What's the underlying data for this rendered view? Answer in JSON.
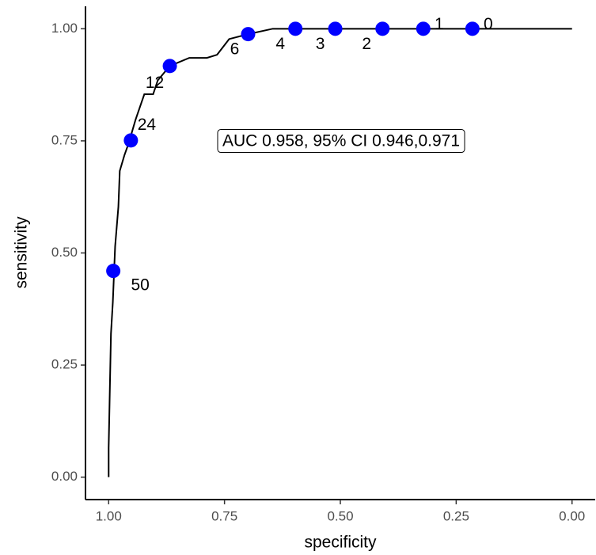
{
  "chart_data": {
    "type": "line",
    "xlabel": "specificity",
    "ylabel": "sensitivity",
    "xlim": [
      1.05,
      -0.05
    ],
    "ylim": [
      -0.05,
      1.05
    ],
    "xticks": [
      {
        "value": 1,
        "label": "1.00"
      },
      {
        "value": 0.75,
        "label": "0.75"
      },
      {
        "value": 0.5,
        "label": "0.50"
      },
      {
        "value": 0.25,
        "label": "0.25"
      },
      {
        "value": 0,
        "label": "0.00"
      }
    ],
    "yticks": [
      {
        "value": 0,
        "label": "0.00"
      },
      {
        "value": 0.25,
        "label": "0.25"
      },
      {
        "value": 0.5,
        "label": "0.50"
      },
      {
        "value": 0.75,
        "label": "0.75"
      },
      {
        "value": 1,
        "label": "1.00"
      }
    ],
    "annotation": "AUC 0.958, 95% CI 0.946,0.971",
    "curve": {
      "color": "#000000",
      "x": [
        1.0,
        1.0,
        0.995,
        0.991,
        0.986,
        0.979,
        0.976,
        0.966,
        0.957,
        0.942,
        0.923,
        0.904,
        0.894,
        0.868,
        0.826,
        0.788,
        0.766,
        0.74,
        0.699,
        0.646,
        0
      ],
      "values": [
        0,
        0.065,
        0.32,
        0.39,
        0.515,
        0.603,
        0.683,
        0.718,
        0.744,
        0.797,
        0.854,
        0.854,
        0.885,
        0.917,
        0.935,
        0.935,
        0.942,
        0.977,
        0.988,
        1.0,
        1.0
      ]
    },
    "points": {
      "color": "#0000ff",
      "x": [
        0.99,
        0.952,
        0.868,
        0.699,
        0.597,
        0.511,
        0.409,
        0.321,
        0.215
      ],
      "values": [
        0.46,
        0.751,
        0.917,
        0.988,
        1.0,
        1.0,
        1.0,
        1.0,
        1.0
      ],
      "labels": [
        "50",
        "24",
        "12",
        "6",
        "4",
        "3",
        "2",
        "1",
        "0"
      ]
    }
  }
}
